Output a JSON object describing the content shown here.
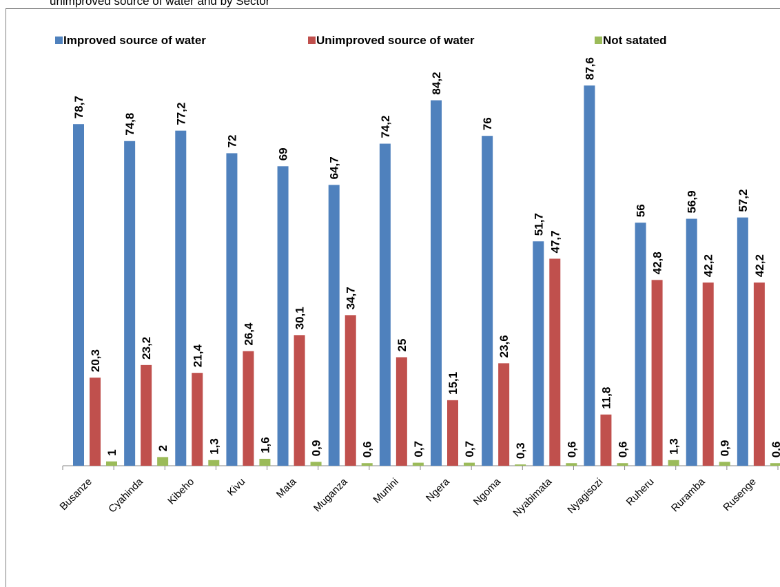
{
  "caption": "unimproved source of water and by Sector",
  "chart_data": {
    "type": "bar",
    "categories": [
      "Busanze",
      "Cyahinda",
      "Kibeho",
      "Kivu",
      "Mata",
      "Muganza",
      "Munini",
      "Ngera",
      "Ngoma",
      "Nyabimata",
      "Nyagisozi",
      "Ruheru",
      "Ruramba",
      "Rusenge"
    ],
    "series": [
      {
        "name": "Improved source of water",
        "color": "#4f81bd",
        "values": [
          78.7,
          74.8,
          77.2,
          72,
          69,
          64.7,
          74.2,
          84.2,
          76,
          51.7,
          87.6,
          56,
          56.9,
          57.2
        ],
        "labels": [
          "78,7",
          "74,8",
          "77,2",
          "72",
          "69",
          "64,7",
          "74,2",
          "84,2",
          "76",
          "51,7",
          "87,6",
          "56",
          "56,9",
          "57,2"
        ]
      },
      {
        "name": "Unimproved source of water",
        "color": "#c0504d",
        "values": [
          20.3,
          23.2,
          21.4,
          26.4,
          30.1,
          34.7,
          25,
          15.1,
          23.6,
          47.7,
          11.8,
          42.8,
          42.2,
          42.2
        ],
        "labels": [
          "20,3",
          "23,2",
          "21,4",
          "26,4",
          "30,1",
          "34,7",
          "25",
          "15,1",
          "23,6",
          "47,7",
          "11,8",
          "42,8",
          "42,2",
          "42,2"
        ]
      },
      {
        "name": "Not satated",
        "color": "#9bbb59",
        "values": [
          1,
          2,
          1.3,
          1.6,
          0.9,
          0.6,
          0.7,
          0.7,
          0.3,
          0.6,
          0.6,
          1.3,
          0.9,
          0.6
        ],
        "labels": [
          "1",
          "2",
          "1,3",
          "1,6",
          "0,9",
          "0,6",
          "0,7",
          "0,7",
          "0,3",
          "0,6",
          "0,6",
          "1,3",
          "0,9",
          "0,6"
        ]
      }
    ],
    "ylim": [
      0,
      90
    ],
    "legend": "top",
    "grid": false
  }
}
